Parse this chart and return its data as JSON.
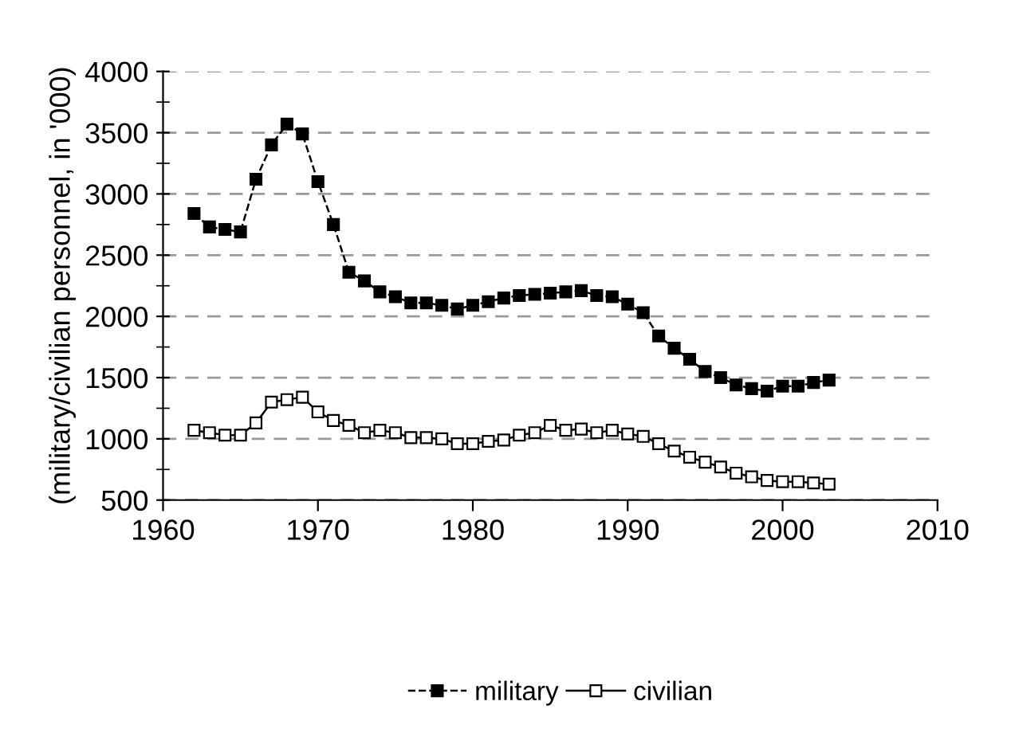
{
  "chart_data": {
    "type": "line",
    "ylabel": "(military/civilian personnel, in '000)",
    "x": [
      1962,
      1963,
      1964,
      1965,
      1966,
      1967,
      1968,
      1969,
      1970,
      1971,
      1972,
      1973,
      1974,
      1975,
      1976,
      1977,
      1978,
      1979,
      1980,
      1981,
      1982,
      1983,
      1984,
      1985,
      1986,
      1987,
      1988,
      1989,
      1990,
      1991,
      1992,
      1993,
      1994,
      1995,
      1996,
      1997,
      1998,
      1999,
      2000,
      2001,
      2002,
      2003
    ],
    "series": [
      {
        "name": "military",
        "color": "#000000",
        "line_style": "dashed",
        "marker": "square",
        "values": [
          2840,
          2730,
          2710,
          2690,
          3120,
          3400,
          3570,
          3490,
          3100,
          2750,
          2360,
          2290,
          2200,
          2160,
          2110,
          2110,
          2090,
          2060,
          2090,
          2120,
          2150,
          2170,
          2180,
          2190,
          2200,
          2210,
          2170,
          2160,
          2100,
          2030,
          1840,
          1740,
          1650,
          1550,
          1500,
          1440,
          1410,
          1390,
          1430,
          1430,
          1460,
          1480
        ]
      },
      {
        "name": "civilian",
        "color": "#000000",
        "line_style": "solid",
        "marker": "square",
        "values": [
          1070,
          1050,
          1030,
          1030,
          1130,
          1300,
          1320,
          1340,
          1220,
          1150,
          1110,
          1050,
          1070,
          1050,
          1010,
          1010,
          1000,
          960,
          960,
          980,
          990,
          1030,
          1050,
          1110,
          1070,
          1080,
          1050,
          1070,
          1040,
          1020,
          960,
          900,
          850,
          810,
          770,
          720,
          690,
          660,
          650,
          650,
          640,
          630
        ]
      }
    ],
    "xlim": [
      1960,
      2010
    ],
    "xticks": [
      1960,
      1970,
      1980,
      1990,
      2000,
      2010
    ],
    "ylim": [
      500,
      4000
    ],
    "yticks": [
      500,
      1000,
      1500,
      2000,
      2500,
      3000,
      3500,
      4000
    ],
    "grid": "y",
    "legend": "bottom"
  }
}
